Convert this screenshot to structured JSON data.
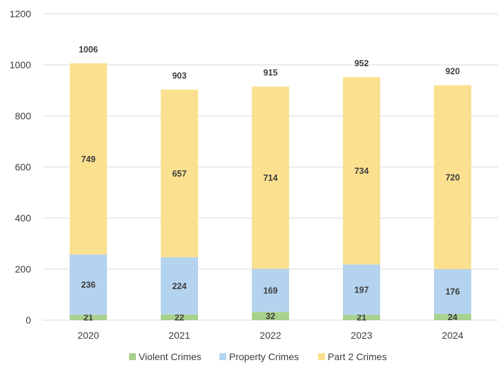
{
  "chart_data": {
    "type": "bar",
    "stacked": true,
    "title": "",
    "xlabel": "",
    "ylabel": "",
    "ylim": [
      0,
      1200
    ],
    "yticks": [
      0,
      200,
      400,
      600,
      800,
      1000,
      1200
    ],
    "grid": true,
    "legend_position": "bottom",
    "categories": [
      "2020",
      "2021",
      "2022",
      "2023",
      "2024"
    ],
    "series": [
      {
        "name": "Violent Crimes",
        "color": "#a9d18e",
        "values": [
          21,
          22,
          32,
          21,
          24
        ]
      },
      {
        "name": "Property Crimes",
        "color": "#b4d3ee",
        "values": [
          236,
          224,
          169,
          197,
          176
        ]
      },
      {
        "name": "Part 2 Crimes",
        "color": "#fbe08f",
        "values": [
          749,
          657,
          714,
          734,
          720
        ]
      }
    ],
    "totals": [
      1006,
      903,
      915,
      952,
      920
    ]
  }
}
